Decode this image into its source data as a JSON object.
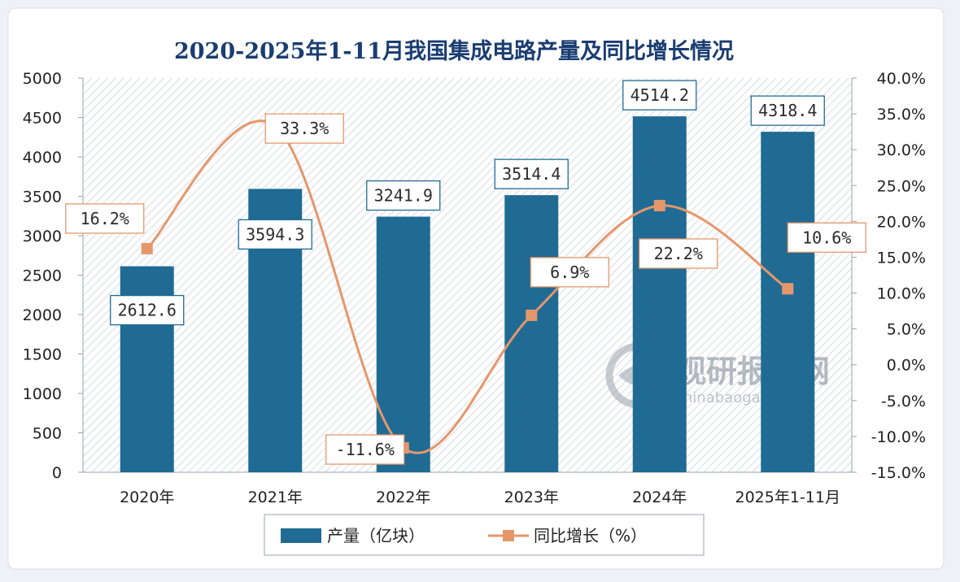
{
  "chart_data": {
    "type": "bar+line",
    "title": "2020-2025年1-11月我国集成电路产量及同比增长情况",
    "categories": [
      "2020年",
      "2021年",
      "2022年",
      "2023年",
      "2024年",
      "2025年1-11月"
    ],
    "series": [
      {
        "name": "产量（亿块）",
        "type": "bar",
        "axis": "left",
        "values": [
          2612.6,
          3594.3,
          3241.9,
          3514.4,
          4514.2,
          4318.4
        ],
        "labels": [
          "2612.6",
          "3594.3",
          "3241.9",
          "3514.4",
          "4514.2",
          "4318.4"
        ]
      },
      {
        "name": "同比增长（%）",
        "type": "line",
        "axis": "right",
        "values": [
          16.2,
          33.3,
          -11.6,
          6.9,
          22.2,
          10.6
        ],
        "labels": [
          "16.2%",
          "33.3%",
          "-11.6%",
          "6.9%",
          "22.2%",
          "10.6%"
        ]
      }
    ],
    "y_left": {
      "min": 0,
      "max": 5000,
      "ticks": [
        "0",
        "500",
        "1000",
        "1500",
        "2000",
        "2500",
        "3000",
        "3500",
        "4000",
        "4500",
        "5000"
      ]
    },
    "y_right": {
      "min": -15,
      "max": 40,
      "ticks": [
        "-15.0%",
        "-10.0%",
        "-5.0%",
        "0.0%",
        "5.0%",
        "10.0%",
        "15.0%",
        "20.0%",
        "25.0%",
        "30.0%",
        "35.0%",
        "40.0%"
      ]
    },
    "grid": false,
    "legend_position": "bottom",
    "colors": {
      "bar": "#1f6b94",
      "line": "#e5976b",
      "label_border_bar": "#1f6b94",
      "label_border_line": "#e5976b"
    }
  },
  "watermark": {
    "cn": "观研报告网",
    "en": "chinabaogao.com"
  }
}
